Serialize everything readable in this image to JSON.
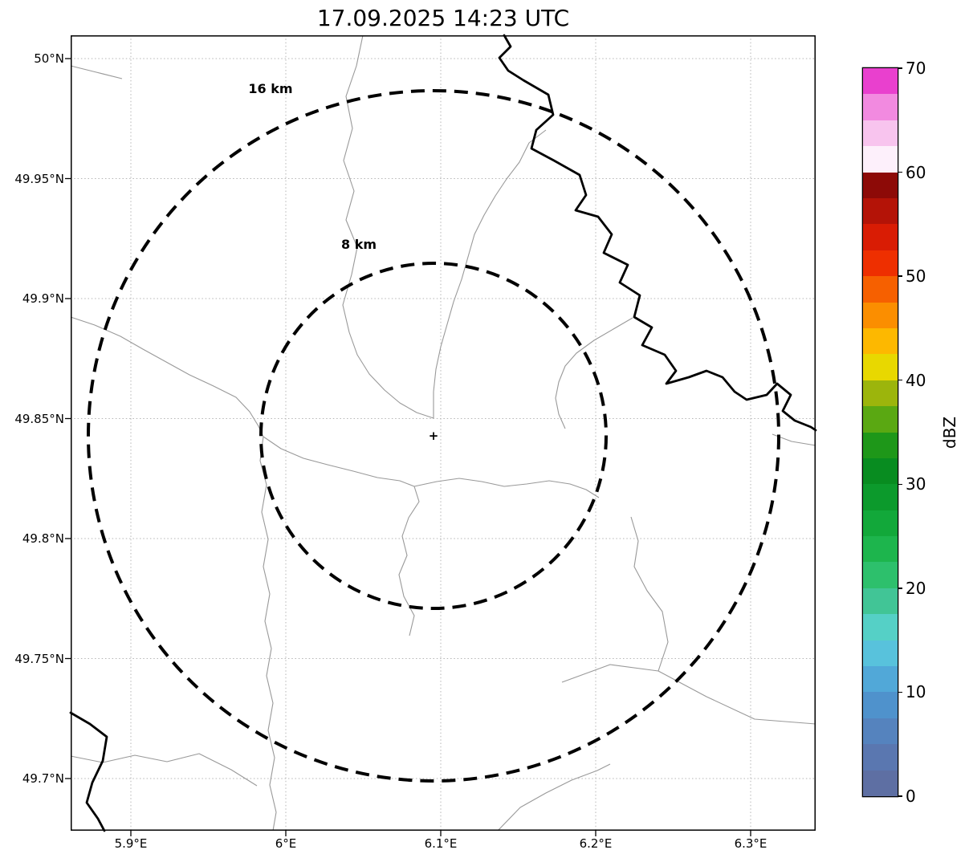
{
  "title": "17.09.2025 14:23 UTC",
  "axes": {
    "x_ticks": [
      "5.9°E",
      "6°E",
      "6.1°E",
      "6.2°E",
      "6.3°E"
    ],
    "y_ticks": [
      "50°N",
      "49.95°N",
      "49.9°N",
      "49.85°N",
      "49.8°N",
      "49.75°N",
      "49.7°N"
    ]
  },
  "rings": {
    "outer_label": "16 km",
    "inner_label": "8 km"
  },
  "center_marker": "+",
  "colorbar": {
    "label": "dBZ",
    "tick_labels": [
      "0",
      "10",
      "20",
      "30",
      "40",
      "50",
      "60",
      "70"
    ],
    "colors_bottom_to_top": [
      "#5e6fa3",
      "#5a77b0",
      "#5583be",
      "#4f92cc",
      "#51a8d8",
      "#58c2dc",
      "#55d0c6",
      "#41c596",
      "#2dc06c",
      "#1db54d",
      "#12a83a",
      "#0c9a2c",
      "#088c20",
      "#1e9719",
      "#5aa812",
      "#9cb50c",
      "#e8d800",
      "#fdb800",
      "#fb8e00",
      "#f66000",
      "#ee2f00",
      "#d91c04",
      "#b41307",
      "#8d0a07",
      "#fdf0fb",
      "#f8c4ee",
      "#f28ae0",
      "#e940ce"
    ]
  },
  "geo": {
    "borders": [
      "M 364,0 L 356,38 L 343,76 L 351,116 L 340,156 L 353,194 L 343,230 L 357,264 L 350,298 L 339,336 L 347,370 L 357,398 L 372,422 L 391,442 L 410,458 L 431,470 L 452,477",
      "M 592,118 L 571,134 L 559,158 L 543,179 L 529,200 L 515,224 L 503,248 L 495,276 L 487,304 L 477,332 L 469,360 L 461,388 L 455,416 L 452,444 L 452,477",
      "M 0,351 L 30,361 L 62,375 L 90,391 L 119,407 L 148,423 L 178,437 L 206,451 L 223,469 L 234,487 L 240,500",
      "M 240,500 L 262,515 L 290,527 L 320,535 L 352,543 L 382,551 L 410,555 L 428,562",
      "M 428,562 L 434,581 L 421,601 L 413,624 L 419,648 L 409,672 L 415,699 L 428,723 L 422,748",
      "M 428,562 L 456,556 L 484,552 L 512,556 L 540,562 L 568,559 L 596,555 L 622,559 L 642,566 L 658,576",
      "M 240,500 L 236,530 L 244,560 L 238,594 L 246,628 L 240,662 L 248,696 L 242,730 L 250,764 L 244,798 L 252,832 L 246,866 L 254,900 L 248,934 L 256,968 L 252,991",
      "M 700,352 L 676,366 L 652,380 L 630,396 L 616,412 L 608,432 L 604,452 L 608,472 L 616,490",
      "M 612,806 L 672,784 L 732,792 L 792,824 L 852,852 L 928,858",
      "M 732,792 L 744,756 L 737,718 L 718,692 L 702,662 L 707,630 L 698,600",
      "M 0,898 L 40,906 L 80,897 L 120,905 L 160,895 L 200,915 L 232,935",
      "M 532,991 L 560,962 L 592,944 L 624,928 L 656,916 L 672,908",
      "M 874,497 L 898,506 L 928,511",
      "M 0,38 L 32,46 L 64,54"
    ],
    "rivers": [
      "M 540,0 L 548,14 L 534,28 L 545,44 L 564,56 L 595,74 L 601,99 L 580,118 L 574,141 L 602,156 L 634,174 L 642,199 L 629,218 L 657,226 L 674,248 L 664,271 L 694,286 L 684,308 L 709,324 L 702,351 L 724,364 L 712,386 L 740,398 L 754,418 L 742,434 L 770,426 L 792,418 L 812,426 L 827,444 L 842,454 L 867,448 L 880,434 L 897,448 L 887,468 L 902,480 L 922,488 L 928,492",
      "M 0,844 L 24,858 L 45,874 L 40,904 L 27,931 L 20,956 L 34,976 L 42,991"
    ]
  },
  "chart_data": {
    "type": "heatmap",
    "title": "17.09.2025 14:23 UTC",
    "x_tick_labels": [
      "5.9°E",
      "6°E",
      "6.1°E",
      "6.2°E",
      "6.3°E"
    ],
    "y_tick_labels": [
      "50°N",
      "49.95°N",
      "49.9°N",
      "49.85°N",
      "49.8°N",
      "49.75°N",
      "49.7°N"
    ],
    "colorbar": {
      "label": "dBZ",
      "ticks": [
        0,
        10,
        20,
        30,
        40,
        50,
        60,
        70
      ],
      "range": [
        0,
        70
      ]
    },
    "range_rings_km": [
      8,
      16
    ],
    "series": [],
    "note": "No radar reflectivity echoes visible in the displayed area"
  }
}
